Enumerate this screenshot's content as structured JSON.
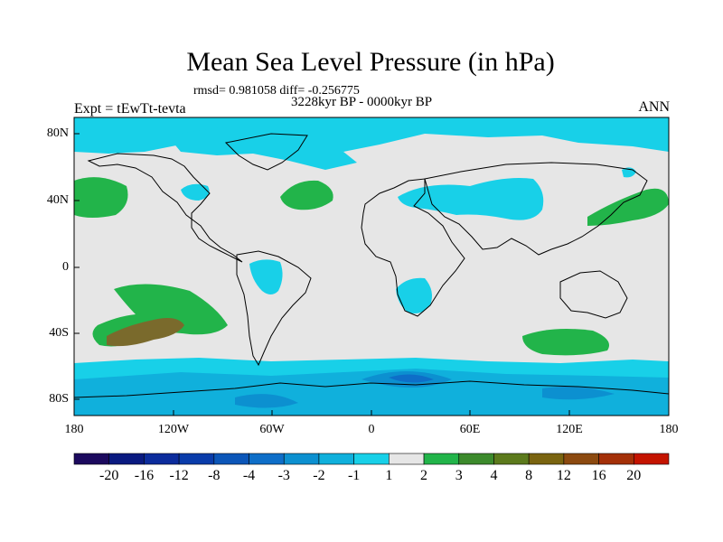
{
  "title": "Mean Sea Level Pressure (in hPa)",
  "stats": "rmsd= 0.981058 diff= -0.256775",
  "period": "3228kyr BP - 0000kyr BP",
  "experiment": "Expt = tEwTt-tevta",
  "season": "ANN",
  "axes": {
    "y_ticks": [
      "80N",
      "40N",
      "0",
      "40S",
      "80S"
    ],
    "x_ticks": [
      "180",
      "120W",
      "60W",
      "0",
      "60E",
      "120E",
      "180"
    ]
  },
  "colorbar": {
    "labels": [
      "-20",
      "-16",
      "-12",
      "-8",
      "-4",
      "-3",
      "-2",
      "-1",
      "1",
      "2",
      "3",
      "4",
      "8",
      "12",
      "16",
      "20"
    ],
    "colors": [
      "#1c0a5e",
      "#0a1a80",
      "#0c2c9c",
      "#0a3caa",
      "#0c56b8",
      "#0e6ec8",
      "#0c90d0",
      "#10b0dc",
      "#18d0e8",
      "#e6e6e6",
      "#22b44a",
      "#3c8a2c",
      "#5c7a1c",
      "#7a6410",
      "#8c4a10",
      "#a43008",
      "#c41400"
    ]
  },
  "map_colors": {
    "ocean": "#e6e6e6",
    "light_neg": "#18d0e8",
    "mid_neg": "#10b0dc",
    "deep_neg": "#0c90d0",
    "deeper_neg": "#0e6ec8",
    "pos": "#22b44a",
    "strong_pos": "#7a6a2c",
    "coast": "#000000"
  }
}
